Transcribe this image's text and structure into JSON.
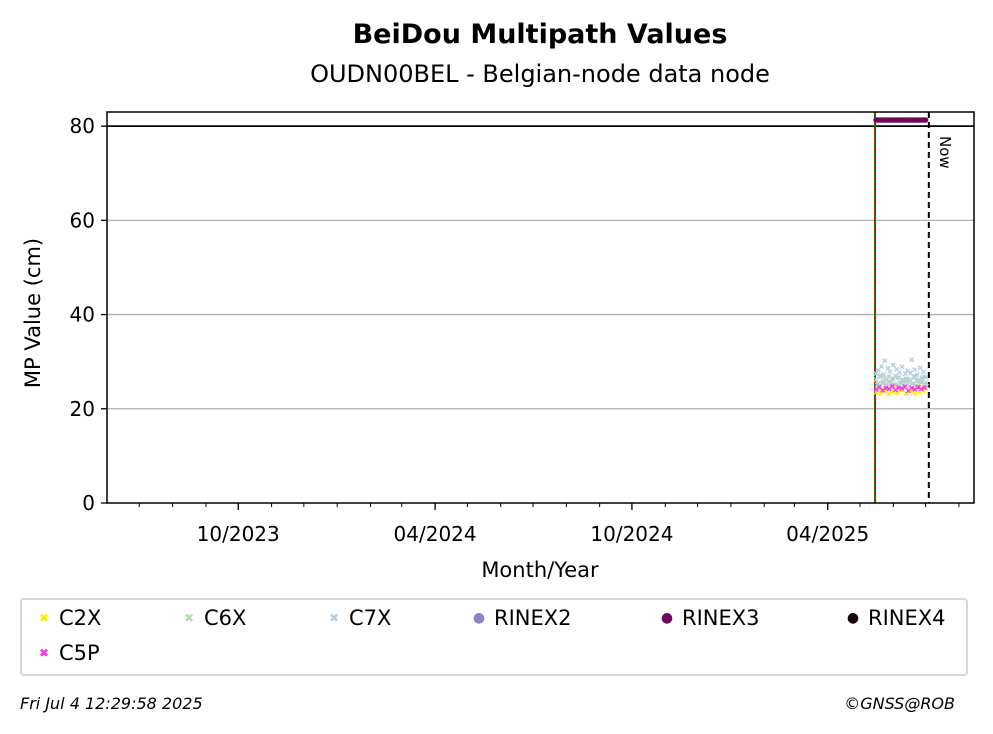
{
  "chart_data": {
    "type": "scatter",
    "title": "BeiDou Multipath Values",
    "subtitle": "OUDN00BEL - Belgian-node data node",
    "xlabel": "Month/Year",
    "ylabel": "MP Value (cm)",
    "x_range": [
      "2023-06-01",
      "2025-08-15"
    ],
    "ylim": [
      0,
      83
    ],
    "x_ticks": [
      "10/2023",
      "04/2024",
      "10/2024",
      "04/2025"
    ],
    "x_tick_dates": [
      "2023-10-01",
      "2024-04-01",
      "2024-10-01",
      "2025-04-01"
    ],
    "y_ticks": [
      0,
      20,
      40,
      60,
      80
    ],
    "grid": "horizontal",
    "legend_position": "bottom",
    "reference_lines": [
      {
        "kind": "horizontal",
        "y": 80,
        "color": "#000000",
        "style": "solid"
      },
      {
        "kind": "vertical",
        "date": "2025-05-15",
        "color": "#007700",
        "style": "solid"
      },
      {
        "kind": "vertical",
        "date": "2025-05-15",
        "color": "#ff0000",
        "style": "dotted"
      },
      {
        "kind": "vertical",
        "date": "2025-07-04",
        "color": "#000000",
        "style": "dashed",
        "label": "Now"
      }
    ],
    "series": [
      {
        "name": "C2X",
        "color": "#ffee00",
        "marker": "x",
        "points": [
          [
            "2025-05-16",
            23.5
          ],
          [
            "2025-05-18",
            24.8
          ],
          [
            "2025-05-20",
            23.2
          ],
          [
            "2025-05-22",
            24.1
          ],
          [
            "2025-05-24",
            23.8
          ],
          [
            "2025-05-26",
            24.6
          ],
          [
            "2025-05-28",
            23.1
          ],
          [
            "2025-05-30",
            24.3
          ],
          [
            "2025-06-01",
            23.6
          ],
          [
            "2025-06-03",
            24.9
          ],
          [
            "2025-06-05",
            23.4
          ],
          [
            "2025-06-07",
            24.2
          ],
          [
            "2025-06-09",
            23.9
          ],
          [
            "2025-06-11",
            24.5
          ],
          [
            "2025-06-13",
            23.3
          ],
          [
            "2025-06-15",
            24.0
          ],
          [
            "2025-06-17",
            23.7
          ],
          [
            "2025-06-19",
            24.4
          ],
          [
            "2025-06-21",
            23.2
          ],
          [
            "2025-06-23",
            24.7
          ],
          [
            "2025-06-25",
            23.5
          ],
          [
            "2025-06-27",
            24.1
          ],
          [
            "2025-06-29",
            23.8
          ],
          [
            "2025-07-01",
            24.3
          ]
        ]
      },
      {
        "name": "C6X",
        "color": "#b8ddb0",
        "marker": "x",
        "points": [
          [
            "2025-05-16",
            26.2
          ],
          [
            "2025-05-18",
            25.4
          ],
          [
            "2025-05-20",
            27.1
          ],
          [
            "2025-05-22",
            25.8
          ],
          [
            "2025-05-24",
            26.5
          ],
          [
            "2025-05-26",
            25.2
          ],
          [
            "2025-05-28",
            26.9
          ],
          [
            "2025-05-30",
            25.6
          ],
          [
            "2025-06-01",
            26.3
          ],
          [
            "2025-06-03",
            25.1
          ],
          [
            "2025-06-05",
            26.7
          ],
          [
            "2025-06-07",
            25.5
          ],
          [
            "2025-06-09",
            26.0
          ],
          [
            "2025-06-11",
            25.3
          ],
          [
            "2025-06-13",
            26.4
          ],
          [
            "2025-06-15",
            25.7
          ],
          [
            "2025-06-17",
            26.1
          ],
          [
            "2025-06-19",
            25.4
          ],
          [
            "2025-06-21",
            26.6
          ],
          [
            "2025-06-23",
            25.9
          ],
          [
            "2025-06-25",
            26.2
          ],
          [
            "2025-06-27",
            25.5
          ],
          [
            "2025-06-29",
            26.8
          ],
          [
            "2025-07-01",
            25.6
          ]
        ]
      },
      {
        "name": "C7X",
        "color": "#b4cde6",
        "marker": "x",
        "points": [
          [
            "2025-05-16",
            27.5
          ],
          [
            "2025-05-17",
            25.1
          ],
          [
            "2025-05-18",
            28.2
          ],
          [
            "2025-05-19",
            24.6
          ],
          [
            "2025-05-20",
            26.8
          ],
          [
            "2025-05-21",
            29.0
          ],
          [
            "2025-05-22",
            25.4
          ],
          [
            "2025-05-23",
            27.3
          ],
          [
            "2025-05-24",
            30.2
          ],
          [
            "2025-05-25",
            24.9
          ],
          [
            "2025-05-26",
            26.1
          ],
          [
            "2025-05-27",
            28.6
          ],
          [
            "2025-05-28",
            25.8
          ],
          [
            "2025-05-29",
            27.9
          ],
          [
            "2025-05-30",
            24.7
          ],
          [
            "2025-05-31",
            26.4
          ],
          [
            "2025-06-01",
            29.3
          ],
          [
            "2025-06-02",
            25.2
          ],
          [
            "2025-06-03",
            27.0
          ],
          [
            "2025-06-04",
            28.4
          ],
          [
            "2025-06-05",
            24.8
          ],
          [
            "2025-06-06",
            26.6
          ],
          [
            "2025-06-07",
            27.7
          ],
          [
            "2025-06-08",
            25.5
          ],
          [
            "2025-06-09",
            28.9
          ],
          [
            "2025-06-10",
            26.2
          ],
          [
            "2025-06-11",
            24.5
          ],
          [
            "2025-06-12",
            27.4
          ],
          [
            "2025-06-13",
            25.9
          ],
          [
            "2025-06-14",
            28.1
          ],
          [
            "2025-06-15",
            26.3
          ],
          [
            "2025-06-16",
            24.9
          ],
          [
            "2025-06-17",
            27.6
          ],
          [
            "2025-06-18",
            30.4
          ],
          [
            "2025-06-19",
            25.3
          ],
          [
            "2025-06-20",
            26.9
          ],
          [
            "2025-06-21",
            28.3
          ],
          [
            "2025-06-22",
            25.0
          ],
          [
            "2025-06-23",
            27.2
          ],
          [
            "2025-06-24",
            26.0
          ],
          [
            "2025-06-25",
            24.6
          ],
          [
            "2025-06-26",
            28.7
          ],
          [
            "2025-06-27",
            25.7
          ],
          [
            "2025-06-28",
            26.5
          ],
          [
            "2025-06-29",
            27.8
          ],
          [
            "2025-06-30",
            25.1
          ],
          [
            "2025-07-01",
            26.7
          ],
          [
            "2025-07-02",
            24.8
          ]
        ]
      },
      {
        "name": "RINEX2",
        "color": "#8a86c2",
        "marker": "o",
        "points": []
      },
      {
        "name": "RINEX3",
        "color": "#6a0a5c",
        "marker": "o",
        "points": [
          [
            "2025-05-16",
            81.3
          ],
          [
            "2025-05-18",
            81.3
          ],
          [
            "2025-05-20",
            81.3
          ],
          [
            "2025-05-22",
            81.3
          ],
          [
            "2025-05-24",
            81.3
          ],
          [
            "2025-05-26",
            81.3
          ],
          [
            "2025-05-28",
            81.3
          ],
          [
            "2025-05-30",
            81.3
          ],
          [
            "2025-06-01",
            81.3
          ],
          [
            "2025-06-03",
            81.3
          ],
          [
            "2025-06-05",
            81.3
          ],
          [
            "2025-06-07",
            81.3
          ],
          [
            "2025-06-09",
            81.3
          ],
          [
            "2025-06-11",
            81.3
          ],
          [
            "2025-06-13",
            81.3
          ],
          [
            "2025-06-15",
            81.3
          ],
          [
            "2025-06-17",
            81.3
          ],
          [
            "2025-06-19",
            81.3
          ],
          [
            "2025-06-21",
            81.3
          ],
          [
            "2025-06-23",
            81.3
          ],
          [
            "2025-06-25",
            81.3
          ],
          [
            "2025-06-27",
            81.3
          ],
          [
            "2025-06-29",
            81.3
          ],
          [
            "2025-07-01",
            81.3
          ]
        ]
      },
      {
        "name": "RINEX4",
        "color": "#1a0010",
        "marker": "o",
        "points": []
      },
      {
        "name": "C5P",
        "color": "#ff33ee",
        "marker": "x",
        "points": [
          [
            "2025-05-16",
            24.1
          ],
          [
            "2025-05-19",
            24.6
          ],
          [
            "2025-05-22",
            23.9
          ],
          [
            "2025-05-25",
            24.4
          ],
          [
            "2025-05-28",
            24.2
          ],
          [
            "2025-05-31",
            24.8
          ],
          [
            "2025-06-03",
            24.0
          ],
          [
            "2025-06-06",
            24.5
          ],
          [
            "2025-06-09",
            24.3
          ],
          [
            "2025-06-12",
            24.7
          ],
          [
            "2025-06-15",
            23.8
          ],
          [
            "2025-06-18",
            24.4
          ],
          [
            "2025-06-21",
            24.1
          ],
          [
            "2025-06-24",
            24.6
          ],
          [
            "2025-06-27",
            24.2
          ],
          [
            "2025-06-30",
            24.5
          ]
        ]
      }
    ]
  },
  "legend": {
    "items": [
      {
        "label": "C2X",
        "color": "#ffee00",
        "symbol": "x"
      },
      {
        "label": "C6X",
        "color": "#b8ddb0",
        "symbol": "x"
      },
      {
        "label": "C7X",
        "color": "#b4cde6",
        "symbol": "x"
      },
      {
        "label": "RINEX2",
        "color": "#8a86c2",
        "symbol": "dot"
      },
      {
        "label": "RINEX3",
        "color": "#6a0a5c",
        "symbol": "dot"
      },
      {
        "label": "RINEX4",
        "color": "#1a0010",
        "symbol": "dot"
      },
      {
        "label": "C5P",
        "color": "#ff33ee",
        "symbol": "x"
      }
    ]
  },
  "footer": {
    "timestamp": "Fri Jul  4 12:29:58 2025",
    "copyright": "©GNSS@ROB"
  }
}
